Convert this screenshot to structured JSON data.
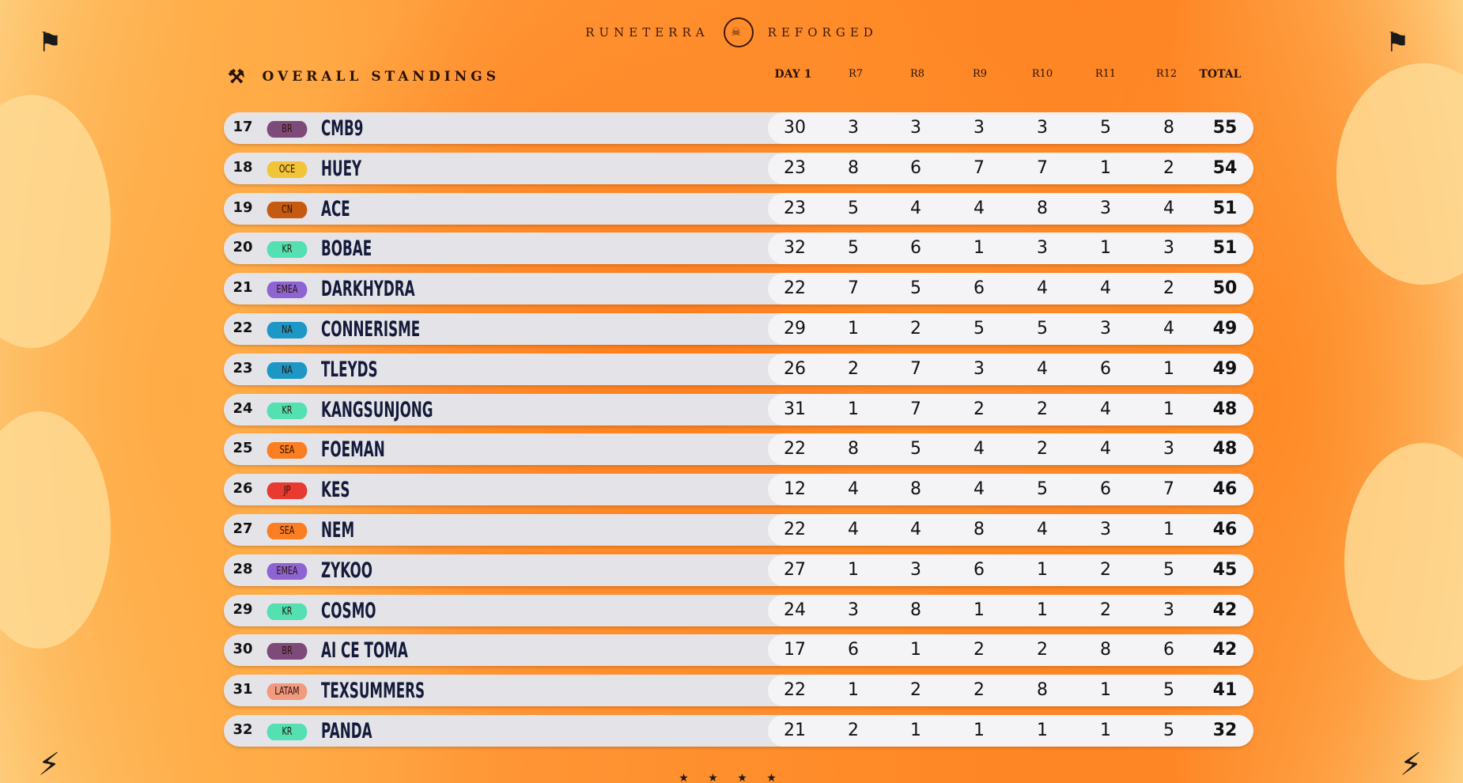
{
  "header": {
    "brand_left": "RUNETERRA",
    "brand_right": "REFORGED",
    "logo_icon": "mask-emblem-icon"
  },
  "title": {
    "label": "OVERALL STANDINGS",
    "icon": "crossed-shovels-icon"
  },
  "columns": [
    "DAY 1",
    "R7",
    "R8",
    "R9",
    "R10",
    "R11",
    "R12",
    "TOTAL"
  ],
  "region_colors": {
    "BR": "#7d4a7a",
    "OCE": "#f2c43a",
    "CN": "#c55a12",
    "KR": "#54e0b0",
    "EMEA": "#8e64d2",
    "NA": "#1d98c6",
    "SEA": "#fb7e22",
    "JP": "#e83a30",
    "LATAM": "#f29a80"
  },
  "rows": [
    {
      "rank": "17",
      "region": "BR",
      "name": "CMB9",
      "day1": "30",
      "r7": "3",
      "r8": "3",
      "r9": "3",
      "r10": "3",
      "r11": "5",
      "r12": "8",
      "total": "55"
    },
    {
      "rank": "18",
      "region": "OCE",
      "name": "HUEY",
      "day1": "23",
      "r7": "8",
      "r8": "6",
      "r9": "7",
      "r10": "7",
      "r11": "1",
      "r12": "2",
      "total": "54"
    },
    {
      "rank": "19",
      "region": "CN",
      "name": "ACE",
      "day1": "23",
      "r7": "5",
      "r8": "4",
      "r9": "4",
      "r10": "8",
      "r11": "3",
      "r12": "4",
      "total": "51"
    },
    {
      "rank": "20",
      "region": "KR",
      "name": "BOBAE",
      "day1": "32",
      "r7": "5",
      "r8": "6",
      "r9": "1",
      "r10": "3",
      "r11": "1",
      "r12": "3",
      "total": "51"
    },
    {
      "rank": "21",
      "region": "EMEA",
      "name": "DARKHYDRA",
      "day1": "22",
      "r7": "7",
      "r8": "5",
      "r9": "6",
      "r10": "4",
      "r11": "4",
      "r12": "2",
      "total": "50"
    },
    {
      "rank": "22",
      "region": "NA",
      "name": "CONNERISME",
      "day1": "29",
      "r7": "1",
      "r8": "2",
      "r9": "5",
      "r10": "5",
      "r11": "3",
      "r12": "4",
      "total": "49"
    },
    {
      "rank": "23",
      "region": "NA",
      "name": "TLEYDS",
      "day1": "26",
      "r7": "2",
      "r8": "7",
      "r9": "3",
      "r10": "4",
      "r11": "6",
      "r12": "1",
      "total": "49"
    },
    {
      "rank": "24",
      "region": "KR",
      "name": "KANGSUNJONG",
      "day1": "31",
      "r7": "1",
      "r8": "7",
      "r9": "2",
      "r10": "2",
      "r11": "4",
      "r12": "1",
      "total": "48"
    },
    {
      "rank": "25",
      "region": "SEA",
      "name": "FOEMAN",
      "day1": "22",
      "r7": "8",
      "r8": "5",
      "r9": "4",
      "r10": "2",
      "r11": "4",
      "r12": "3",
      "total": "48"
    },
    {
      "rank": "26",
      "region": "JP",
      "name": "KES",
      "day1": "12",
      "r7": "4",
      "r8": "8",
      "r9": "4",
      "r10": "5",
      "r11": "6",
      "r12": "7",
      "total": "46"
    },
    {
      "rank": "27",
      "region": "SEA",
      "name": "NEM",
      "day1": "22",
      "r7": "4",
      "r8": "4",
      "r9": "8",
      "r10": "4",
      "r11": "3",
      "r12": "1",
      "total": "46"
    },
    {
      "rank": "28",
      "region": "EMEA",
      "name": "ZYKOO",
      "day1": "27",
      "r7": "1",
      "r8": "3",
      "r9": "6",
      "r10": "1",
      "r11": "2",
      "r12": "5",
      "total": "45"
    },
    {
      "rank": "29",
      "region": "KR",
      "name": "COSMO",
      "day1": "24",
      "r7": "3",
      "r8": "8",
      "r9": "1",
      "r10": "1",
      "r11": "2",
      "r12": "3",
      "total": "42"
    },
    {
      "rank": "30",
      "region": "BR",
      "name": "AI CE TOMA",
      "day1": "17",
      "r7": "6",
      "r8": "1",
      "r9": "2",
      "r10": "2",
      "r11": "8",
      "r12": "6",
      "total": "42"
    },
    {
      "rank": "31",
      "region": "LATAM",
      "name": "TEXSUMMERS",
      "day1": "22",
      "r7": "1",
      "r8": "2",
      "r9": "2",
      "r10": "8",
      "r11": "1",
      "r12": "5",
      "total": "41"
    },
    {
      "rank": "32",
      "region": "KR",
      "name": "PANDA",
      "day1": "21",
      "r7": "2",
      "r8": "1",
      "r9": "1",
      "r10": "1",
      "r11": "1",
      "r12": "5",
      "total": "32"
    }
  ],
  "decorations": {
    "left_flag": "checkered-flag-icon",
    "right_flag": "checkered-flag-icon",
    "bottom_left": "lightning-bolt-icon",
    "bottom_right": "lightning-bolt-icon",
    "footer": "★ ★ ★ ★"
  }
}
